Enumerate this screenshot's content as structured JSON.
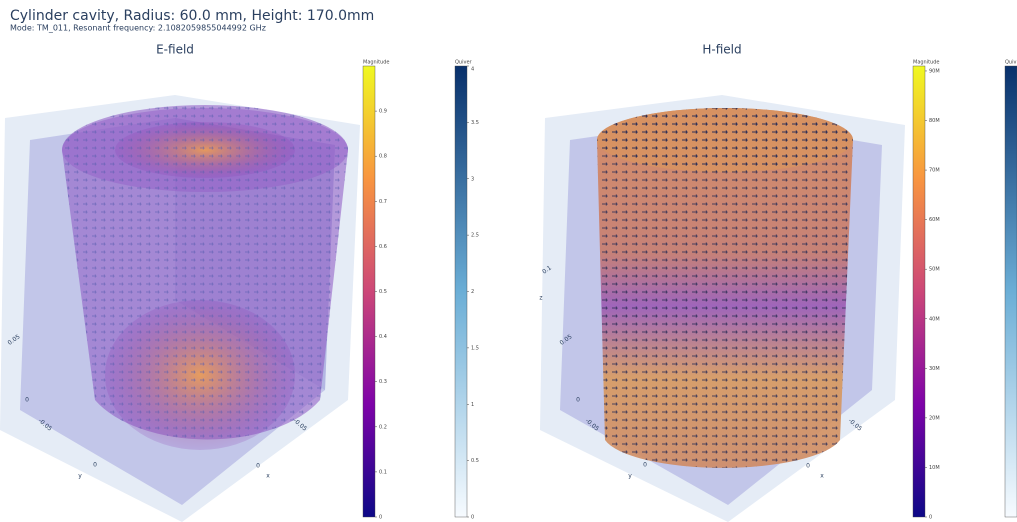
{
  "header": {
    "title": "Cylinder cavity, Radius: 60.0 mm, Height: 170.0mm",
    "subtitle": "Mode: TM_011, Resonant frequency: 2.1082059855044992 GHz"
  },
  "panels": [
    {
      "title": "E-field",
      "scene_labels": [
        "0.05",
        "0",
        "-0.05",
        "y",
        "0",
        "x",
        "0",
        "-0.05"
      ],
      "colorbars": [
        {
          "title": "Magnitude",
          "range": [
            0,
            1
          ],
          "ticks": [
            0,
            0.1,
            0.2,
            0.3,
            0.4,
            0.5,
            0.6,
            0.7,
            0.8,
            0.9
          ]
        },
        {
          "title": "Quiver",
          "range": [
            0,
            4
          ],
          "ticks": [
            0,
            0.5,
            1,
            1.5,
            2,
            2.5,
            3,
            3.5,
            4
          ]
        }
      ]
    },
    {
      "title": "H-field",
      "scene_labels": [
        "0.1",
        "z",
        "0.05",
        "0",
        "-0.05",
        "y",
        "0",
        "x",
        "0",
        "-0.05"
      ],
      "colorbars": [
        {
          "title": "Magnitude",
          "range": [
            0,
            91000000
          ],
          "ticks": [
            0,
            {
              "value": 10000000,
              "label": "10M"
            },
            {
              "value": 20000000,
              "label": "20M"
            },
            {
              "value": 30000000,
              "label": "30M"
            },
            {
              "value": 40000000,
              "label": "40M"
            },
            {
              "value": 50000000,
              "label": "50M"
            },
            {
              "value": 60000000,
              "label": "60M"
            },
            {
              "value": 70000000,
              "label": "70M"
            },
            {
              "value": 80000000,
              "label": "80M"
            },
            {
              "value": 90000000,
              "label": "90M"
            }
          ]
        },
        {
          "title": "Quiv"
        }
      ]
    }
  ]
}
